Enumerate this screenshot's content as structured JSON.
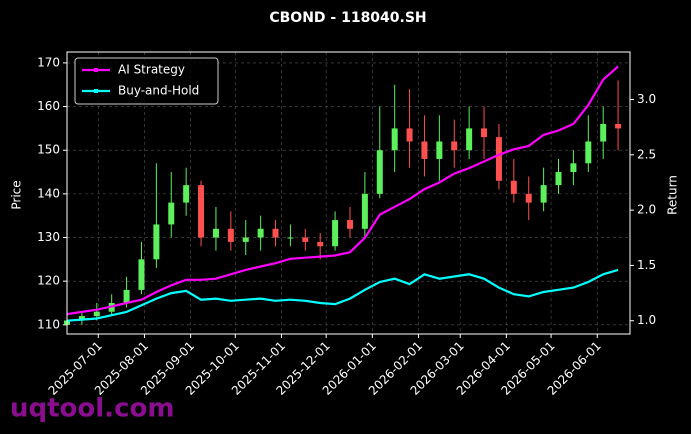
{
  "chart_data": {
    "type": "candlestick",
    "title": "CBOND - 118040.SH",
    "ylabel": "Price",
    "y2label": "Return",
    "watermark": "uqtool.com",
    "x": [
      "2025-06-10",
      "2025-06-20",
      "2025-06-30",
      "2025-07-10",
      "2025-07-20",
      "2025-07-30",
      "2025-08-09",
      "2025-08-19",
      "2025-08-29",
      "2025-09-08",
      "2025-09-18",
      "2025-09-28",
      "2025-10-08",
      "2025-10-18",
      "2025-10-28",
      "2025-11-07",
      "2025-11-17",
      "2025-11-27",
      "2025-12-07",
      "2025-12-17",
      "2025-12-27",
      "2026-01-06",
      "2026-01-16",
      "2026-01-26",
      "2026-02-05",
      "2026-02-15",
      "2026-02-25",
      "2026-03-07",
      "2026-03-17",
      "2026-03-27",
      "2026-04-06",
      "2026-04-16",
      "2026-04-26",
      "2026-05-06",
      "2026-05-16",
      "2026-05-26",
      "2026-06-05",
      "2026-06-15"
    ],
    "open": [
      110,
      111,
      112,
      113,
      115,
      118,
      125,
      133,
      138,
      142,
      130,
      132,
      129,
      130,
      132,
      130,
      130,
      129,
      128,
      134,
      132,
      140,
      150,
      155,
      152,
      148,
      152,
      150,
      155,
      153,
      143,
      140,
      138,
      142,
      145,
      147,
      152,
      156
    ],
    "high": [
      112,
      113,
      115,
      117,
      121,
      129,
      147,
      145,
      146,
      143,
      137,
      136,
      134,
      135,
      134,
      133,
      132,
      131,
      136,
      137,
      145,
      160,
      165,
      164,
      158,
      158,
      157,
      160,
      160,
      156,
      148,
      144,
      146,
      148,
      150,
      158,
      160,
      166
    ],
    "low": [
      109,
      110,
      111,
      112,
      114,
      117,
      123,
      130,
      135,
      128,
      127,
      127,
      126,
      127,
      128,
      128,
      127,
      125,
      127,
      130,
      130,
      139,
      145,
      146,
      144,
      143,
      146,
      148,
      148,
      141,
      138,
      134,
      136,
      140,
      142,
      145,
      148,
      150
    ],
    "close": [
      111,
      112,
      113,
      115,
      118,
      125,
      133,
      138,
      142,
      130,
      132,
      129,
      130,
      132,
      130,
      130,
      129,
      128,
      134,
      132,
      140,
      150,
      155,
      152,
      148,
      152,
      150,
      155,
      153,
      143,
      140,
      138,
      142,
      145,
      147,
      152,
      156,
      155
    ],
    "up_color": "#5cf05c",
    "down_color": "#ff5050",
    "series": [
      {
        "name": "AI Strategy",
        "color": "#ff00ff",
        "axis": "y2",
        "values": [
          1.06,
          1.08,
          1.1,
          1.13,
          1.16,
          1.19,
          1.26,
          1.32,
          1.37,
          1.37,
          1.38,
          1.42,
          1.46,
          1.49,
          1.52,
          1.56,
          1.57,
          1.58,
          1.59,
          1.62,
          1.75,
          1.96,
          2.03,
          2.1,
          2.19,
          2.25,
          2.33,
          2.38,
          2.44,
          2.5,
          2.55,
          2.58,
          2.68,
          2.72,
          2.78,
          2.95,
          3.18,
          3.3
        ]
      },
      {
        "name": "Buy-and-Hold",
        "color": "#00ffff",
        "axis": "y2",
        "values": [
          1.0,
          1.01,
          1.02,
          1.05,
          1.08,
          1.14,
          1.2,
          1.25,
          1.27,
          1.19,
          1.2,
          1.18,
          1.19,
          1.2,
          1.18,
          1.19,
          1.18,
          1.16,
          1.15,
          1.2,
          1.28,
          1.35,
          1.38,
          1.33,
          1.42,
          1.38,
          1.4,
          1.42,
          1.38,
          1.3,
          1.24,
          1.22,
          1.26,
          1.28,
          1.3,
          1.35,
          1.42,
          1.46
        ]
      }
    ],
    "xlim": [
      "2025-06-10",
      "2026-06-23"
    ],
    "xticks": [
      "2025-07-01",
      "2025-08-01",
      "2025-09-01",
      "2025-10-01",
      "2025-11-01",
      "2025-12-01",
      "2026-01-01",
      "2026-02-01",
      "2026-03-01",
      "2026-04-01",
      "2026-05-01",
      "2026-06-01"
    ],
    "ylim": [
      107.9,
      172.5
    ],
    "yticks": [
      110,
      120,
      130,
      140,
      150,
      160,
      170
    ],
    "y2lim": [
      0.88,
      3.43
    ],
    "y2ticks": [
      {
        "value": 1.0,
        "label": "1.0"
      },
      {
        "value": 1.5,
        "label": "1.5"
      },
      {
        "value": 2.0,
        "label": "2.0"
      },
      {
        "value": 2.5,
        "label": "2.5"
      },
      {
        "value": 3.0,
        "label": "3.0"
      }
    ],
    "grid": true,
    "legend": "upper left"
  }
}
